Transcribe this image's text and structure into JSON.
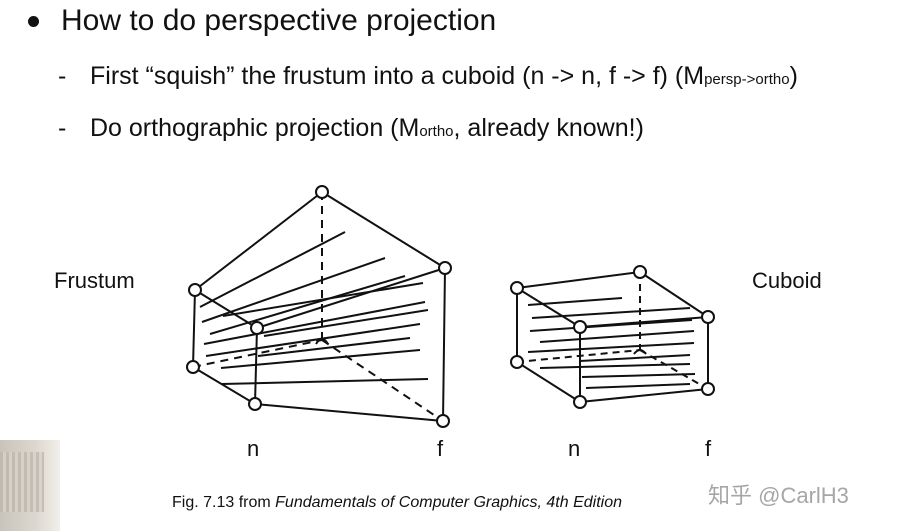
{
  "bullet": "How to do perspective projection",
  "items": [
    {
      "dash": "-",
      "text": "First “squish” the frustum into a cuboid (n -> n, f -> f) (M",
      "sub": "persp->ortho",
      "end": ")"
    },
    {
      "dash": "-",
      "text": "Do orthographic projection (M",
      "sub": "ortho",
      "end": ", already known!)"
    }
  ],
  "labels": {
    "frustum": "Frustum",
    "cuboid": "Cuboid",
    "n_left": "n",
    "f_left": "f",
    "n_right": "n",
    "f_right": "f"
  },
  "caption": {
    "prefix": "Fig. 7.13 from ",
    "title": "Fundamentals of Computer Graphics, 4th Edition"
  },
  "watermark": "知乎 @CarlH3"
}
